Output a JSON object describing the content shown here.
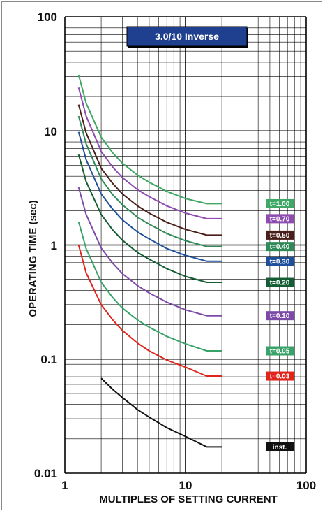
{
  "chart_data": {
    "type": "line",
    "title": "3.0/10 Inverse",
    "xlabel": "MULTIPLES OF SETTING CURRENT",
    "ylabel": "OPERATING TIME (sec)",
    "x_scale": "log",
    "y_scale": "log",
    "xlim": [
      1,
      100
    ],
    "ylim": [
      0.01,
      100
    ],
    "x_ticks": [
      "1",
      "10",
      "100"
    ],
    "y_ticks": [
      "0.01",
      "0.1",
      "1",
      "10",
      "100"
    ],
    "grid": true,
    "colors": {
      "title_bg": "#1f3f8f",
      "title_border": "#000000"
    },
    "x": [
      1.3,
      1.5,
      2,
      2.5,
      3,
      4,
      5,
      7,
      10,
      15,
      20
    ],
    "series": [
      {
        "name": "t=1.00",
        "color": "#3fa865",
        "values": [
          31,
          17.5,
          8.8,
          6.4,
          5.2,
          4.1,
          3.55,
          2.95,
          2.55,
          2.3,
          2.3
        ]
      },
      {
        "name": "t=0.70",
        "color": "#8e4bb0",
        "values": [
          24,
          13.5,
          6.6,
          4.8,
          3.9,
          3.05,
          2.65,
          2.2,
          1.9,
          1.7,
          1.7
        ]
      },
      {
        "name": "t=0.50",
        "color": "#4a1f1a",
        "values": [
          17,
          9.6,
          4.7,
          3.45,
          2.8,
          2.2,
          1.9,
          1.58,
          1.37,
          1.22,
          1.22
        ]
      },
      {
        "name": "t=0.40",
        "color": "#2f8a57",
        "values": [
          13.5,
          7.7,
          3.8,
          2.75,
          2.25,
          1.75,
          1.52,
          1.26,
          1.09,
          0.97,
          0.97
        ]
      },
      {
        "name": "t=0.30",
        "color": "#1e4f9a",
        "values": [
          9.8,
          5.6,
          2.8,
          2.05,
          1.66,
          1.3,
          1.13,
          0.93,
          0.81,
          0.72,
          0.72
        ]
      },
      {
        "name": "t=0.20",
        "color": "#145c32",
        "values": [
          6.2,
          3.6,
          1.85,
          1.35,
          1.1,
          0.86,
          0.75,
          0.62,
          0.53,
          0.47,
          0.47
        ]
      },
      {
        "name": "t=0.10",
        "color": "#7b4aa8",
        "values": [
          3.2,
          1.85,
          0.94,
          0.69,
          0.56,
          0.44,
          0.38,
          0.315,
          0.27,
          0.24,
          0.24
        ]
      },
      {
        "name": "t=0.05",
        "color": "#38a268",
        "values": [
          1.6,
          0.93,
          0.47,
          0.345,
          0.28,
          0.22,
          0.19,
          0.158,
          0.136,
          0.118,
          0.118
        ]
      },
      {
        "name": "t=0.03",
        "color": "#e0241b",
        "values": [
          1.0,
          0.57,
          0.3,
          0.22,
          0.178,
          0.138,
          0.118,
          0.098,
          0.085,
          0.071,
          0.071
        ]
      },
      {
        "name": "inst.",
        "color": "#111111",
        "values": [
          null,
          null,
          0.068,
          0.054,
          0.046,
          0.036,
          0.031,
          0.025,
          0.021,
          0.017,
          0.017
        ]
      }
    ]
  }
}
